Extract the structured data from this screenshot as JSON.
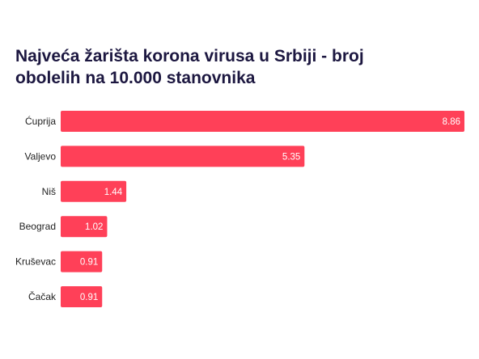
{
  "chart_data": {
    "type": "bar",
    "orientation": "horizontal",
    "title": "Najveća žarišta korona virusa u Srbiji - broj obolelih na 10.000 stanovnika",
    "xlabel": "",
    "ylabel": "",
    "categories": [
      "Ćuprija",
      "Valjevo",
      "Niš",
      "Beograd",
      "Kruševac",
      "Čačak"
    ],
    "values": [
      8.86,
      5.35,
      1.44,
      1.02,
      0.91,
      0.91
    ],
    "value_labels": [
      "8.86",
      "5.35",
      "1.44",
      "1.02",
      "0.91",
      "0.91"
    ],
    "xlim": [
      0,
      8.86
    ],
    "bar_color": "#ff4058",
    "grid": false,
    "legend": "none"
  }
}
